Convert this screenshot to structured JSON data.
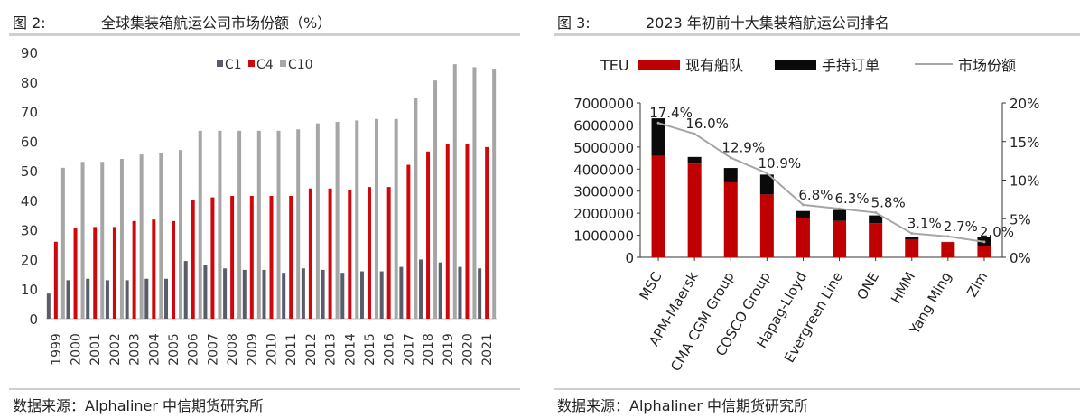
{
  "left": {
    "figure_label": "图 2:",
    "figure_title": "全球集装箱航运公司市场份额（%）",
    "source": "数据来源：Alphaliner 中信期货研究所",
    "colors": {
      "C1": "#595c69",
      "C4": "#d0060c",
      "C10": "#a6a6a6"
    }
  },
  "right": {
    "figure_label": "图 3:",
    "figure_title": "2023 年初前十大集装箱航运公司排名",
    "source": "数据来源：Alphaliner 中信期货研究所",
    "colors": {
      "fleet": "#c00000",
      "orderbook": "#0a0a0a",
      "share": "#a6a6a6"
    }
  },
  "chart_data": [
    {
      "type": "bar",
      "title": "全球集装箱航运公司市场份额（%）",
      "categories": [
        "1999",
        "2000",
        "2001",
        "2002",
        "2003",
        "2004",
        "2005",
        "2006",
        "2007",
        "2008",
        "2009",
        "2010",
        "2011",
        "2012",
        "2013",
        "2014",
        "2015",
        "2016",
        "2017",
        "2018",
        "2019",
        "2020",
        "2021"
      ],
      "series": [
        {
          "name": "C1",
          "values": [
            8.5,
            13,
            13.5,
            13,
            13,
            13.5,
            13.5,
            19.5,
            18,
            17,
            16.5,
            16.5,
            15.5,
            17,
            16.5,
            15.5,
            16,
            16,
            17.5,
            20,
            19,
            17.5,
            17
          ]
        },
        {
          "name": "C4",
          "values": [
            26,
            30.5,
            31,
            31,
            33,
            33.5,
            33,
            40,
            41,
            41.5,
            41.5,
            41.5,
            41.5,
            44,
            44,
            43.5,
            44.5,
            44.5,
            52,
            56.5,
            59,
            59,
            58
          ]
        },
        {
          "name": "C10",
          "values": [
            51,
            53,
            53,
            54,
            55.5,
            56,
            57,
            63.5,
            63.5,
            63.5,
            63.5,
            63.5,
            64,
            66,
            66.5,
            67,
            67.5,
            67.5,
            74.5,
            80.5,
            86,
            85,
            84.5
          ]
        }
      ],
      "ylim": [
        0,
        90
      ],
      "yticks": [
        0,
        10,
        20,
        30,
        40,
        50,
        60,
        70,
        80,
        90
      ],
      "legend_position": "top-right",
      "grid": false
    },
    {
      "type": "bar",
      "stacked": true,
      "title": "2023 年初前十大集装箱航运公司排名",
      "unit_label": "TEU",
      "categories": [
        "MSC",
        "APM-Maersk",
        "CMA CGM Group",
        "COSCO Group",
        "Hapag-Lloyd",
        "Evergreen Line",
        "ONE",
        "HMM",
        "Yang Ming",
        "Zim"
      ],
      "series": [
        {
          "name": "现有船队",
          "values": [
            4600000,
            4250000,
            3400000,
            2850000,
            1800000,
            1650000,
            1550000,
            820000,
            690000,
            520000
          ]
        },
        {
          "name": "手持订单",
          "values": [
            1700000,
            300000,
            650000,
            900000,
            300000,
            500000,
            350000,
            120000,
            10000,
            420000
          ]
        },
        {
          "name": "市场份额",
          "axis": "right",
          "type": "line",
          "values": [
            17.4,
            16.0,
            12.9,
            10.9,
            6.8,
            6.3,
            5.8,
            3.1,
            2.7,
            2.0
          ],
          "labels": [
            "17.4%",
            "16.0%",
            "12.9%",
            "10.9%",
            "6.8%",
            "6.3%",
            "5.8%",
            "3.1%",
            "2.7%",
            "2.0%"
          ]
        }
      ],
      "ylim": [
        0,
        7000000
      ],
      "yticks": [
        "0",
        "1000000",
        "2000000",
        "3000000",
        "4000000",
        "5000000",
        "6000000",
        "7000000"
      ],
      "y2lim": [
        0,
        20
      ],
      "y2ticks": [
        "0%",
        "5%",
        "10%",
        "15%",
        "20%"
      ],
      "legend_position": "top",
      "grid": false
    }
  ]
}
